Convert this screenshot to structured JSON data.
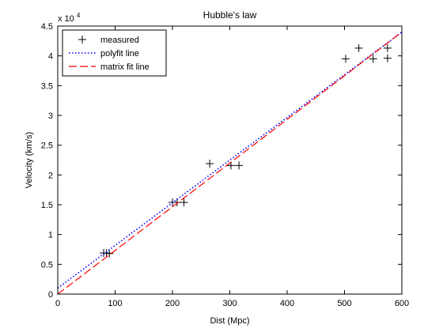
{
  "chart_data": {
    "type": "scatter",
    "title": "Hubble's law",
    "xlabel": "Dist (Mpc)",
    "ylabel": "Velocity (km/s)",
    "xlim": [
      0,
      600
    ],
    "ylim": [
      0,
      45000
    ],
    "x_ticks": [
      0,
      100,
      200,
      300,
      400,
      500,
      600
    ],
    "y_ticks": [
      0,
      5000,
      10000,
      15000,
      20000,
      25000,
      30000,
      35000,
      40000,
      45000
    ],
    "x_tick_labels": [
      "0",
      "100",
      "200",
      "300",
      "400",
      "500",
      "600"
    ],
    "y_tick_labels": [
      "0",
      "0.5",
      "1",
      "1.5",
      "2",
      "2.5",
      "3",
      "3.5",
      "4",
      "4.5"
    ],
    "y_multiplier_base": "x 10",
    "y_multiplier_exp": "4",
    "grid": false,
    "legend_position": "top-left",
    "series": [
      {
        "name": "measured",
        "style": "markers",
        "marker": "+",
        "color": "#000000",
        "x": [
          80,
          85,
          90,
          200,
          208,
          220,
          265,
          302,
          316,
          502,
          525,
          550,
          575,
          575
        ],
        "y": [
          6900,
          6900,
          6800,
          15400,
          15400,
          15400,
          21900,
          21600,
          21600,
          39500,
          41300,
          39500,
          39600,
          41300
        ]
      },
      {
        "name": "polyfit line",
        "style": "dotted",
        "color": "#0000ff",
        "x": [
          0,
          600
        ],
        "y": [
          1000,
          44000
        ]
      },
      {
        "name": "matrix fit line",
        "style": "dashed",
        "color": "#ff0000",
        "x": [
          0,
          600
        ],
        "y": [
          0,
          44000
        ]
      }
    ]
  }
}
